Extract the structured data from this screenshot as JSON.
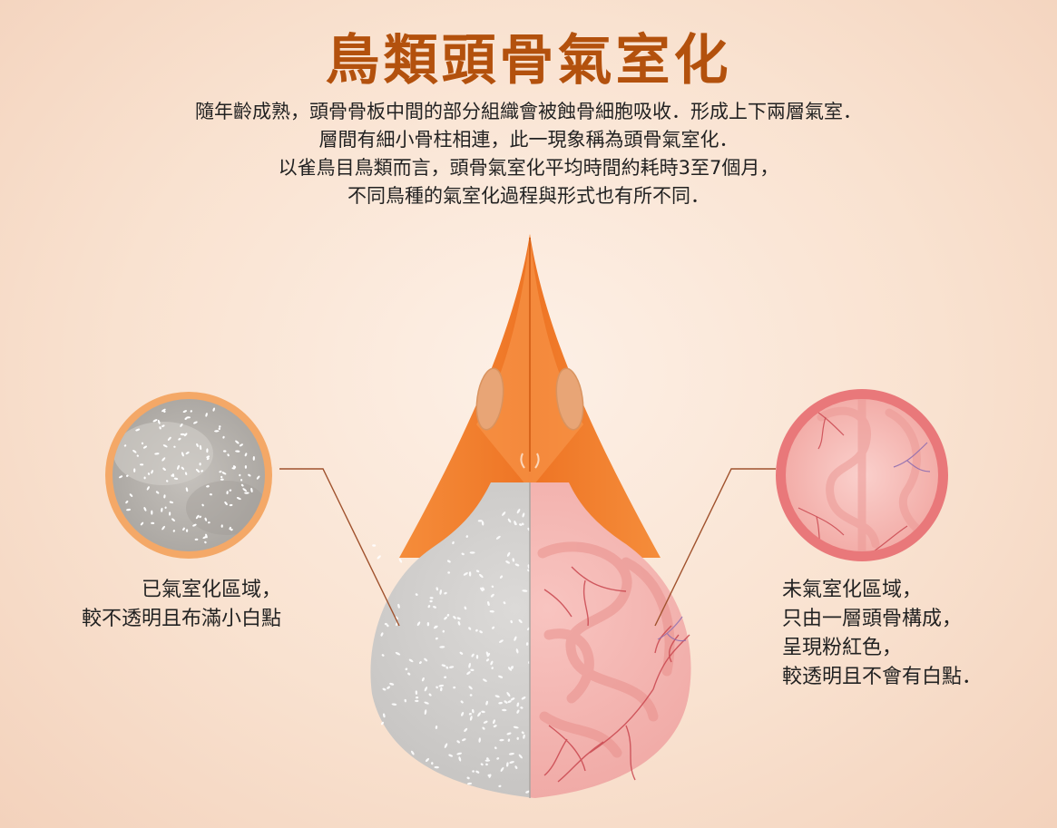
{
  "title": "鳥類頭骨氣室化",
  "intro_lines": [
    "隨年齡成熟，頭骨骨板中間的部分組織會被蝕骨細胞吸收．形成上下兩層氣室．",
    "層間有細小骨柱相連，此一現象稱為頭骨氣室化．",
    "以雀鳥目鳥類而言，頭骨氣室化平均時間約耗時3至7個月，",
    "不同鳥種的氣室化過程與形式也有所不同．"
  ],
  "left_caption": [
    "已氣室化區域，",
    "較不透明且布滿小白點"
  ],
  "right_caption": [
    "未氣室化區域，",
    "只由一層頭骨構成，",
    "呈現粉紅色，",
    "較透明且不會有白點．"
  ],
  "colors": {
    "title": "#b3510d",
    "beak": "#f07c2a",
    "pneumatized": "#cfcdcb",
    "unpneumatized": "#f3b1ad",
    "left_ring": "#f4a867",
    "right_ring": "#e9787a",
    "leader_line": "#a0522d"
  }
}
